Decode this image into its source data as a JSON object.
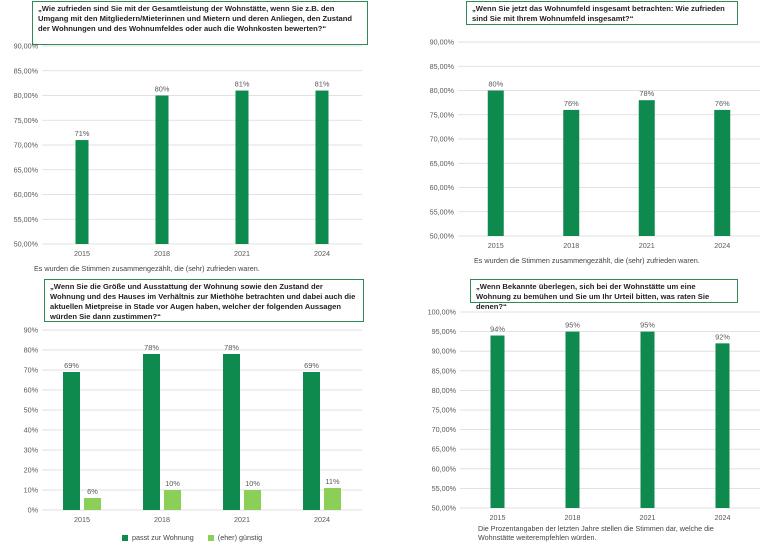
{
  "colors": {
    "primary": "#0f8a4f",
    "secondary": "#8ccf58",
    "grid": "#d9d9d9",
    "text": "#595959"
  },
  "chart_data": [
    {
      "type": "bar",
      "title": "„Wie zufrieden sind Sie mit der Gesamtleistung der Wohnstätte, wenn Sie z.B. den Umgang mit den Mitgliedern/Mieterinnen und Mietern und deren Anliegen, den Zustand der Wohnungen und des Wohnumfeldes oder auch die Wohnkosten bewerten?“",
      "categories": [
        "2015",
        "2018",
        "2021",
        "2024"
      ],
      "series": [
        {
          "values": [
            71,
            80,
            81,
            81
          ],
          "labels": [
            "71%",
            "80%",
            "81%",
            "81%"
          ]
        }
      ],
      "ylim": [
        50,
        90
      ],
      "yticks": [
        "50,00%",
        "55,00%",
        "60,00%",
        "65,00%",
        "70,00%",
        "75,00%",
        "80,00%",
        "85,00%",
        "90,00%"
      ],
      "grid": true,
      "note": "Es wurden die Stimmen zusammengezählt, die (sehr) zufrieden waren."
    },
    {
      "type": "bar",
      "title": "„Wenn Sie jetzt das Wohnumfeld insgesamt betrachten: Wie zufrieden sind Sie mit Ihrem Wohnumfeld insgesamt?“",
      "categories": [
        "2015",
        "2018",
        "2021",
        "2024"
      ],
      "series": [
        {
          "values": [
            80,
            76,
            78,
            76
          ],
          "labels": [
            "80%",
            "76%",
            "78%",
            "76%"
          ]
        }
      ],
      "ylim": [
        50,
        90
      ],
      "yticks": [
        "50,00%",
        "55,00%",
        "60,00%",
        "65,00%",
        "70,00%",
        "75,00%",
        "80,00%",
        "85,00%",
        "90,00%"
      ],
      "grid": true,
      "note": "Es wurden die Stimmen zusammengezählt, die (sehr) zufrieden waren."
    },
    {
      "type": "bar",
      "title": "„Wenn Sie die Größe und Ausstattung der Wohnung sowie den Zustand der Wohnung und des Hauses im Verhältnis zur Miethöhe betrachten und dabei auch die aktuellen Mietpreise in Stade vor Augen haben, welcher der folgenden Aussagen würden Sie dann zustimmen?“",
      "categories": [
        "2015",
        "2018",
        "2021",
        "2024"
      ],
      "series": [
        {
          "name": "passt zur Wohnung",
          "values": [
            69,
            78,
            78,
            69
          ],
          "labels": [
            "69%",
            "78%",
            "78%",
            "69%"
          ]
        },
        {
          "name": "(eher) günstig",
          "values": [
            6,
            10,
            10,
            11
          ],
          "labels": [
            "6%",
            "10%",
            "10%",
            "11%"
          ]
        }
      ],
      "ylim": [
        0,
        90
      ],
      "yticks": [
        "0%",
        "10%",
        "20%",
        "30%",
        "40%",
        "50%",
        "60%",
        "70%",
        "80%",
        "90%"
      ],
      "grid": true,
      "legend_position": "bottom"
    },
    {
      "type": "bar",
      "title": "„Wenn Bekannte überlegen, sich bei der Wohnstätte um eine Wohnung zu bemühen und Sie um Ihr Urteil bitten, was raten Sie denen?“",
      "categories": [
        "2015",
        "2018",
        "2021",
        "2024"
      ],
      "series": [
        {
          "values": [
            94,
            95,
            95,
            92
          ],
          "labels": [
            "94%",
            "95%",
            "95%",
            "92%"
          ]
        }
      ],
      "ylim": [
        50,
        100
      ],
      "yticks": [
        "50,00%",
        "55,00%",
        "60,00%",
        "65,00%",
        "70,00%",
        "75,00%",
        "80,00%",
        "85,00%",
        "90,00%",
        "95,00%",
        "100,00%"
      ],
      "grid": true,
      "note": "Die Prozentangaben der letzten Jahre stellen die Stimmen dar, welche die Wohnstätte weiterempfehlen würden."
    }
  ]
}
